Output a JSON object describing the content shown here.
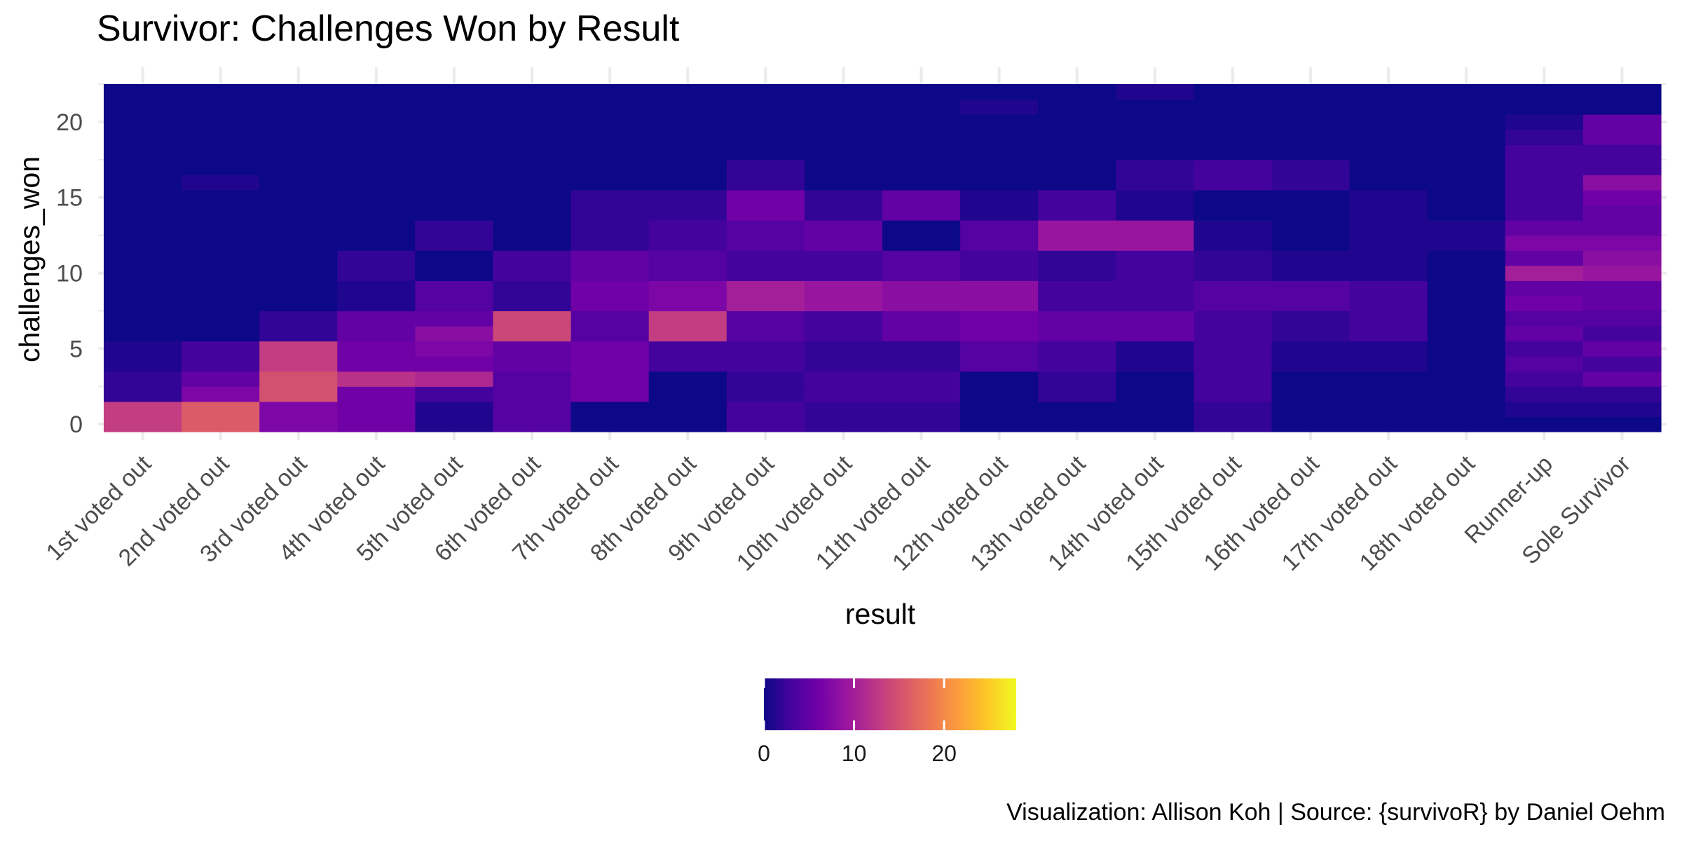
{
  "chart_data": {
    "type": "heatmap",
    "title": "Survivor: Challenges Won by Result",
    "xlabel": "result",
    "ylabel": "challenges_won",
    "caption": "Visualization: Allison Koh | Source: {survivoR} by Daniel Oehm",
    "categories": [
      "1st voted out",
      "2nd voted out",
      "3rd voted out",
      "4th voted out",
      "5th voted out",
      "6th voted out",
      "7th voted out",
      "8th voted out",
      "9th voted out",
      "10th voted out",
      "11th voted out",
      "12th voted out",
      "13th voted out",
      "14th voted out",
      "15th voted out",
      "16th voted out",
      "17th voted out",
      "18th voted out",
      "Runner-up",
      "Sole Survivor"
    ],
    "y_values": [
      0,
      1,
      2,
      3,
      4,
      5,
      6,
      7,
      8,
      9,
      10,
      11,
      12,
      13,
      14,
      15,
      16,
      17,
      18,
      19,
      20,
      21,
      22
    ],
    "ylim": [
      0,
      22
    ],
    "y_ticks": [
      "0",
      "5",
      "10",
      "15",
      "20"
    ],
    "values_note": "rows are categories; each row lists counts for challenges_won = 0..22",
    "values": [
      [
        13,
        13,
        2,
        2,
        1,
        1,
        0,
        0,
        0,
        0,
        0,
        0,
        0,
        0,
        0,
        0,
        0,
        0,
        0,
        0,
        0,
        0,
        0
      ],
      [
        16,
        16,
        7,
        5,
        3,
        3,
        0,
        0,
        0,
        0,
        0,
        0,
        0,
        0,
        0,
        0,
        1,
        0,
        0,
        0,
        0,
        0,
        0
      ],
      [
        7,
        7,
        15,
        15,
        13,
        13,
        2,
        2,
        0,
        0,
        0,
        0,
        0,
        0,
        0,
        0,
        0,
        0,
        0,
        0,
        0,
        0,
        0
      ],
      [
        6,
        6,
        6,
        12,
        6,
        6,
        5,
        5,
        1,
        1,
        2,
        2,
        0,
        0,
        0,
        0,
        0,
        0,
        0,
        0,
        0,
        0,
        0
      ],
      [
        1,
        1,
        3,
        11,
        6,
        7,
        8,
        5,
        4,
        4,
        0,
        0,
        2,
        2,
        0,
        0,
        0,
        0,
        0,
        0,
        0,
        0,
        0
      ],
      [
        4,
        4,
        4,
        4,
        5,
        5,
        14,
        14,
        2,
        2,
        3,
        3,
        0,
        0,
        0,
        0,
        0,
        0,
        0,
        0,
        0,
        0,
        0
      ],
      [
        0,
        0,
        6,
        6,
        6,
        6,
        4,
        4,
        6,
        6,
        5,
        5,
        2,
        2,
        2,
        2,
        0,
        0,
        0,
        0,
        0,
        0,
        0
      ],
      [
        0,
        0,
        0,
        0,
        3,
        3,
        13,
        13,
        7,
        7,
        4,
        4,
        3,
        3,
        2,
        2,
        0,
        0,
        0,
        0,
        0,
        0,
        0
      ],
      [
        3,
        3,
        2,
        2,
        3,
        3,
        4,
        4,
        10,
        10,
        3,
        3,
        4,
        4,
        6,
        6,
        2,
        2,
        0,
        0,
        0,
        0,
        0
      ],
      [
        2,
        2,
        3,
        3,
        2,
        2,
        3,
        3,
        9,
        9,
        3,
        3,
        5,
        5,
        2,
        2,
        0,
        0,
        0,
        0,
        0,
        0,
        0
      ],
      [
        2,
        2,
        3,
        3,
        2,
        2,
        5,
        5,
        8,
        8,
        4,
        4,
        0,
        0,
        5,
        5,
        0,
        0,
        0,
        0,
        0,
        0,
        0
      ],
      [
        0,
        0,
        0,
        0,
        4,
        4,
        6,
        6,
        8,
        8,
        3,
        3,
        4,
        4,
        1,
        1,
        0,
        0,
        0,
        0,
        0,
        1,
        0
      ],
      [
        0,
        0,
        2,
        2,
        3,
        3,
        5,
        5,
        3,
        3,
        2,
        2,
        9,
        9,
        3,
        3,
        0,
        0,
        0,
        0,
        0,
        0,
        0
      ],
      [
        0,
        0,
        0,
        0,
        1,
        1,
        5,
        5,
        3,
        3,
        3,
        3,
        9,
        9,
        1,
        1,
        2,
        2,
        0,
        0,
        0,
        0,
        1
      ],
      [
        2,
        2,
        3,
        3,
        3,
        3,
        3,
        3,
        4,
        4,
        2,
        2,
        1,
        1,
        0,
        0,
        3,
        3,
        0,
        0,
        0,
        0,
        0
      ],
      [
        0,
        0,
        0,
        0,
        1,
        1,
        2,
        2,
        4,
        4,
        1,
        1,
        0,
        0,
        0,
        0,
        2,
        2,
        0,
        0,
        0,
        0,
        0
      ],
      [
        0,
        0,
        0,
        0,
        1,
        1,
        3,
        3,
        3,
        3,
        1,
        1,
        1,
        1,
        1,
        1,
        0,
        0,
        0,
        0,
        0,
        0,
        0
      ],
      [
        0,
        0,
        0,
        0,
        0,
        0,
        0,
        0,
        0,
        0,
        0,
        0,
        1,
        1,
        0,
        0,
        0,
        0,
        0,
        0,
        0,
        0,
        0
      ],
      [
        0,
        1,
        2,
        3,
        4,
        3,
        5,
        4,
        6,
        5,
        10,
        5,
        7,
        5,
        3,
        3,
        3,
        3,
        3,
        2,
        1,
        0,
        0
      ],
      [
        0,
        1,
        2,
        5,
        3,
        5,
        3,
        4,
        5,
        5,
        9,
        8,
        7,
        5,
        5,
        6,
        8,
        3,
        3,
        5,
        5,
        0,
        0
      ]
    ],
    "legend": {
      "type": "colorbar",
      "ticks": [
        "0",
        "10",
        "20"
      ],
      "range": [
        0,
        28
      ],
      "position": "bottom"
    },
    "colors": [
      "#0d0887",
      "#47039f",
      "#7301a8",
      "#9c179e",
      "#bd3786",
      "#d8576b",
      "#ed7953",
      "#fb9f3a",
      "#fdca26",
      "#f0f921"
    ],
    "grid": true
  }
}
